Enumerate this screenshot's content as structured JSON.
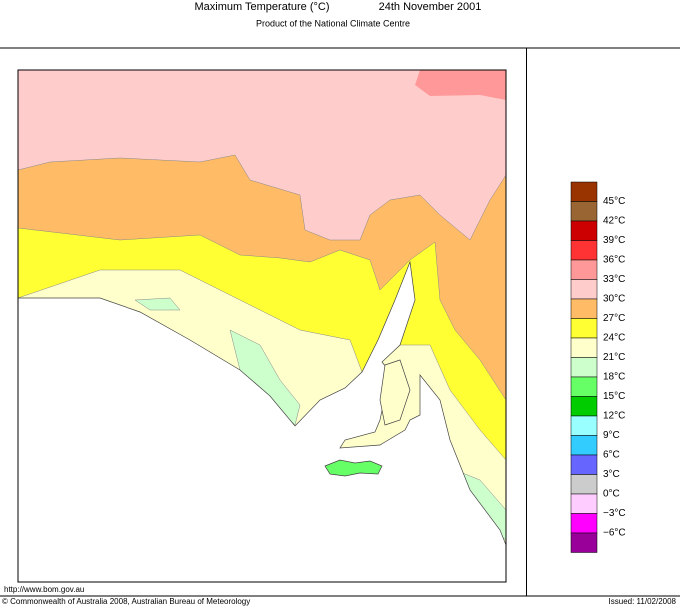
{
  "header": {
    "title": "Maximum Temperature (°C)",
    "date": "24th November 2001",
    "subtitle": "Product of the National Climate Centre"
  },
  "legend": {
    "labels": [
      "45°C",
      "42°C",
      "39°C",
      "36°C",
      "33°C",
      "30°C",
      "27°C",
      "24°C",
      "21°C",
      "18°C",
      "15°C",
      "12°C",
      "9°C",
      "6°C",
      "3°C",
      "0°C",
      "−3°C",
      "−6°C"
    ],
    "colors": [
      "#993300",
      "#996633",
      "#cc0000",
      "#ff3333",
      "#ff9999",
      "#ffcccc",
      "#ffbb66",
      "#ffff33",
      "#ffffcc",
      "#ccffcc",
      "#66ff66",
      "#00cc00",
      "#99ffff",
      "#33ccff",
      "#6666ff",
      "#cccccc",
      "#ffccff",
      "#ff00ff",
      "#990099"
    ]
  },
  "footer": {
    "url": "http://www.bom.gov.au",
    "copyright": "© Commonwealth of Australia 2008, Australian Bureau of Meteorology",
    "issued": "Issued: 11/02/2008"
  }
}
